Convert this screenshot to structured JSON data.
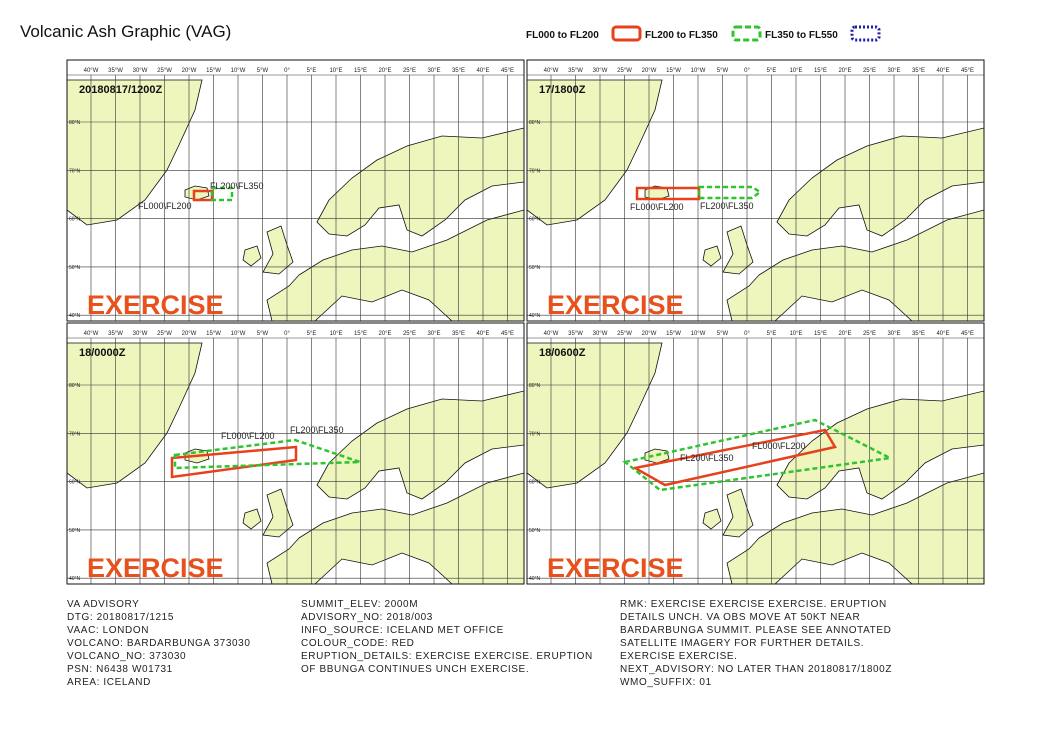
{
  "title": "Volcanic Ash Graphic (VAG)",
  "legend": [
    {
      "label": "FL000 to FL200",
      "color": "#e8401c"
    },
    {
      "label": "FL200 to FL350",
      "color": "#2ec42e"
    },
    {
      "label": "FL350 to FL550",
      "color": "#1c1ca8"
    }
  ],
  "map": {
    "lon_labels": [
      "40°W",
      "35°W",
      "30°W",
      "25°W",
      "20°W",
      "15°W",
      "10°W",
      "5°W",
      "0°",
      "5°E",
      "10°E",
      "15°E",
      "20°E",
      "25°E",
      "30°E",
      "35°E",
      "40°E",
      "45°E"
    ],
    "lat_labels": [
      "80°N",
      "70°N",
      "60°N",
      "50°N",
      "40°N"
    ],
    "watermark": "EXERCISE"
  },
  "panels": [
    {
      "time": "20180817/1200Z",
      "labels": [
        "FL000\\FL200",
        "FL200\\FL350"
      ]
    },
    {
      "time": "17/1800Z",
      "labels": [
        "FL000\\FL200",
        "FL200\\FL350"
      ]
    },
    {
      "time": "18/0000Z",
      "labels": [
        "FL000\\FL200",
        "FL200\\FL350"
      ]
    },
    {
      "time": "18/0600Z",
      "labels": [
        "FL000\\FL200",
        "FL200\\FL350"
      ]
    }
  ],
  "advisory": {
    "columns": [
      [
        "VA ADVISORY",
        "DTG: 20180817/1215",
        "VAAC: LONDON",
        "VOLCANO: BARDARBUNGA 373030",
        "VOLCANO_NO: 373030",
        "PSN: N6438 W01731",
        "AREA: ICELAND"
      ],
      [
        "SUMMIT_ELEV: 2000M",
        "ADVISORY_NO: 2018/003",
        "INFO_SOURCE: ICELAND MET OFFICE",
        "COLOUR_CODE: RED",
        "ERUPTION_DETAILS: EXERCISE EXERCISE. ERUPTION",
        "OF BBUNGA CONTINUES UNCH EXERCISE."
      ],
      [
        "RMK: EXERCISE EXERCISE EXERCISE. ERUPTION",
        "DETAILS UNCH. VA OBS MOVE AT 50KT NEAR",
        "BARDARBUNGA SUMMIT. PLEASE SEE ANNOTATED",
        "SATELLITE IMAGERY FOR FURTHER DETAILS.",
        "EXERCISE EXERCISE.",
        "NEXT_ADVISORY: NO LATER THAN 20180817/1800Z",
        "WMO_SUFFIX: 01"
      ]
    ]
  }
}
